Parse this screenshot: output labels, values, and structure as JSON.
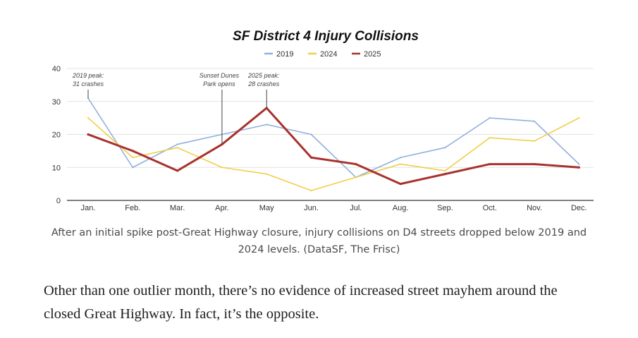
{
  "chart_data": {
    "type": "line",
    "title": "SF District 4 Injury Collisions",
    "categories": [
      "Jan.",
      "Feb.",
      "Mar.",
      "Apr.",
      "May",
      "Jun.",
      "Jul.",
      "Aug.",
      "Sep.",
      "Oct.",
      "Nov.",
      "Dec."
    ],
    "series": [
      {
        "name": "2019",
        "color": "#8fb0dc",
        "values": [
          31,
          10,
          17,
          20,
          23,
          20,
          7,
          13,
          16,
          25,
          24,
          11
        ]
      },
      {
        "name": "2024",
        "color": "#f0cf4a",
        "values": [
          25,
          13,
          16,
          10,
          8,
          3,
          7,
          11,
          9,
          19,
          18,
          25
        ]
      },
      {
        "name": "2025",
        "color": "#a8322d",
        "values": [
          20,
          15,
          9,
          17,
          28,
          13,
          11,
          5,
          8,
          11,
          11,
          10
        ]
      }
    ],
    "ylim": [
      0,
      40
    ],
    "yticks": [
      0,
      10,
      20,
      30,
      40
    ],
    "grid": true,
    "legend": "top-center",
    "xlabel": "",
    "ylabel": "",
    "annotations": [
      {
        "lines": [
          "2019 peak:",
          "31 crashes"
        ],
        "x": "Jan.",
        "y": 31,
        "series": "2019"
      },
      {
        "lines": [
          "Sunset Dunes",
          "Park opens"
        ],
        "x": "Apr.",
        "y": 17,
        "series": "2025"
      },
      {
        "lines": [
          "2025 peak:",
          "28 crashes"
        ],
        "x": "May",
        "y": 28,
        "series": "2025"
      }
    ]
  },
  "caption": "After an initial spike post-Great Highway closure, injury collisions on D4 streets dropped below 2019 and 2024 levels. (DataSF, The Frisc)",
  "body_text": "Other than one outlier month, there’s no evidence of increased street mayhem around the closed Great Highway. In fact, it’s the opposite."
}
